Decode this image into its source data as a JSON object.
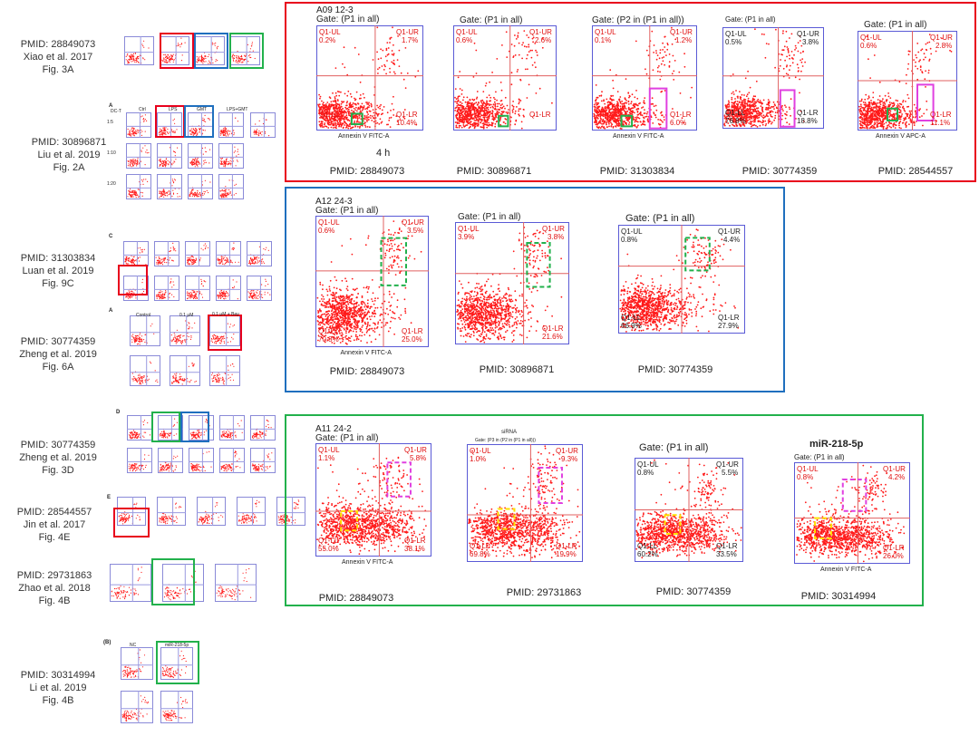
{
  "colors": {
    "red": "#e8001c",
    "blue": "#1f6fbe",
    "green": "#22b14c",
    "magenta": "#e040e0",
    "yellow": "#ffe000"
  },
  "left_captions": [
    {
      "pmid": "PMID: 28849073",
      "author": "Xiao et al. 2017",
      "fig": "Fig. 3A"
    },
    {
      "pmid": "PMID: 30896871",
      "author": "Liu et al. 2019",
      "fig": "Fig. 2A"
    },
    {
      "pmid": "PMID: 31303834",
      "author": "Luan et al. 2019",
      "fig": "Fig. 9C"
    },
    {
      "pmid": "PMID: 30774359",
      "author": "Zheng et al. 2019",
      "fig": "Fig. 6A"
    },
    {
      "pmid": "PMID: 30774359",
      "author": "Zheng et al. 2019",
      "fig": "Fig. 3D"
    },
    {
      "pmid": "PMID: 28544557",
      "author": "Jin et al. 2017",
      "fig": "Fig. 4E"
    },
    {
      "pmid": "PMID: 29731863",
      "author": "Zhao et al. 2018",
      "fig": "Fig. 4B"
    },
    {
      "pmid": "PMID: 30314994",
      "author": "Li et al. 2019",
      "fig": "Fig. 4B"
    }
  ],
  "thumb_text": {
    "a_label": "A",
    "c_label": "C",
    "d_label": "D",
    "e_label": "E",
    "b_label": "(B)",
    "liu_cols": [
      "DC-T",
      "Ctrl",
      "LPS",
      "GMT",
      "LPS+GMT"
    ],
    "liu_rows": [
      "1:5",
      "1:10",
      "1:20"
    ],
    "zheng6a_cols": [
      "Control",
      "0.1 μM",
      "0.1 μM + Bay"
    ],
    "li_cols": [
      "NC",
      "miR-218-5p"
    ]
  },
  "red_panel": {
    "plots": [
      {
        "gate": "A09 12-3",
        "gate2": "Gate: (P1 in all)",
        "ul": "Q1-UL",
        "ul_v": "0.2%",
        "ur": "Q1-UR",
        "ur_v": "1.7%",
        "ll": "Q1-LL",
        "ll_v": "",
        "lr": "Q1-LR",
        "lr_v": "10.4%",
        "xaxis": "Annexin V FITC-A",
        "sub": "4 h",
        "caption": "PMID: 28849073"
      },
      {
        "gate": "Gate: (P1 in all)",
        "gate2": "",
        "ul": "Q1-UL",
        "ul_v": "0.6%",
        "ur": "Q1-UR",
        "ur_v": "2.6%",
        "ll": "",
        "ll_v": "",
        "lr": "Q1-LR",
        "lr_v": "",
        "xaxis": "",
        "sub": "",
        "caption": "PMID: 30896871"
      },
      {
        "gate": "Gate: (P2 in (P1 in all))",
        "gate2": "",
        "ul": "Q1-UL",
        "ul_v": "0.1%",
        "ur": "Q1-UR",
        "ur_v": "1.2%",
        "ll": "",
        "ll_v": "",
        "lr": "Q1-LR",
        "lr_v": "6.0%",
        "xaxis": "Annexin V FITC-A",
        "sub": "",
        "caption": "PMID: 31303834"
      },
      {
        "gate": "Gate: (P1 in all)",
        "gate2": "",
        "ul": "Q1-UL",
        "ul_v": "0.5%",
        "ur": "Q1-UR",
        "ur_v": "3.8%",
        "ll": "Q1-LL",
        "ll_v": "76.8%",
        "lr": "Q1-LR",
        "lr_v": "18.8%",
        "xaxis": "",
        "sub": "",
        "caption": "PMID: 30774359"
      },
      {
        "gate": "Gate: (P1 in all)",
        "gate2": "",
        "ul": "Q1-UL",
        "ul_v": "0.6%",
        "ur": "Q1-UR",
        "ur_v": "2.8%",
        "ll": "",
        "ll_v": "",
        "lr": "Q1-LR",
        "lr_v": "11.1%",
        "xaxis": "Annexin V APC-A",
        "sub": "",
        "caption": "PMID: 28544557"
      }
    ]
  },
  "blue_panel": {
    "plots": [
      {
        "gate": "A12 24-3",
        "gate2": "Gate: (P1 in all)",
        "ul": "Q1-UL",
        "ul_v": "0.6%",
        "ur": "Q1-UR",
        "ur_v": "3.5%",
        "ll": "Q1-LL",
        "ll_v": "70.8%",
        "lr": "Q1-LR",
        "lr_v": "25.0%",
        "xaxis": "Annexin V FITC-A",
        "caption": "PMID: 28849073"
      },
      {
        "gate": "Gate: (P1 in all)",
        "gate2": "",
        "ul": "Q1-UL",
        "ul_v": "3.9%",
        "ur": "Q1-UR",
        "ur_v": "3.8%",
        "ll": "",
        "ll_v": "",
        "lr": "Q1-LR",
        "lr_v": "21.6%",
        "xaxis": "",
        "caption": "PMID: 30896871"
      },
      {
        "gate": "Gate: (P1 in all)",
        "gate2": "",
        "ul": "Q1-UL",
        "ul_v": "0.8%",
        "ur": "Q1-UR",
        "ur_v": "4.4%",
        "ll": "Q1-LL",
        "ll_v": "66.9%",
        "lr": "Q1-LR",
        "lr_v": "27.9%",
        "xaxis": "",
        "caption": "PMID: 30774359"
      }
    ]
  },
  "green_panel": {
    "plots": [
      {
        "gate": "A11 24-2",
        "gate2": "Gate: (P1 in all)",
        "ul": "Q1-UL",
        "ul_v": "1.1%",
        "ur": "Q1-UR",
        "ur_v": "5.8%",
        "ll": "Q1-LL",
        "ll_v": "55.0%",
        "lr": "Q1-LR",
        "lr_v": "38.1%",
        "xaxis": "Annexin V FITC-A",
        "caption": "PMID: 28849073"
      },
      {
        "gate": "siRNA",
        "gate2": "Gate: (P3 in (P2 in (P1 in all)))",
        "ul": "Q1-UL",
        "ul_v": "1.0%",
        "ur": "Q1-UR",
        "ur_v": "9.3%",
        "ll": "Q1-LL",
        "ll_v": "69.8%",
        "lr": "Q1-LR",
        "lr_v": "19.9%",
        "xaxis": "",
        "caption": "PMID: 29731863"
      },
      {
        "gate": "Gate: (P1 in all)",
        "gate2": "",
        "ul": "Q1-UL",
        "ul_v": "0.8%",
        "ur": "Q1-UR",
        "ur_v": "5.5%",
        "ll": "Q1-LL",
        "ll_v": "60.2%",
        "lr": "Q1-LR",
        "lr_v": "33.5%",
        "xaxis": "",
        "caption": "PMID: 30774359"
      },
      {
        "gate": "miR-218-5p",
        "gate2": "Gate: (P1 in all)",
        "ul": "Q1-UL",
        "ul_v": "0.8%",
        "ur": "Q1-UR",
        "ur_v": "4.2%",
        "ll": "",
        "ll_v": "",
        "lr": "Q1-LR",
        "lr_v": "26.0%",
        "xaxis": "Annexin V FITC-A",
        "caption": "PMID: 30314994"
      }
    ]
  }
}
